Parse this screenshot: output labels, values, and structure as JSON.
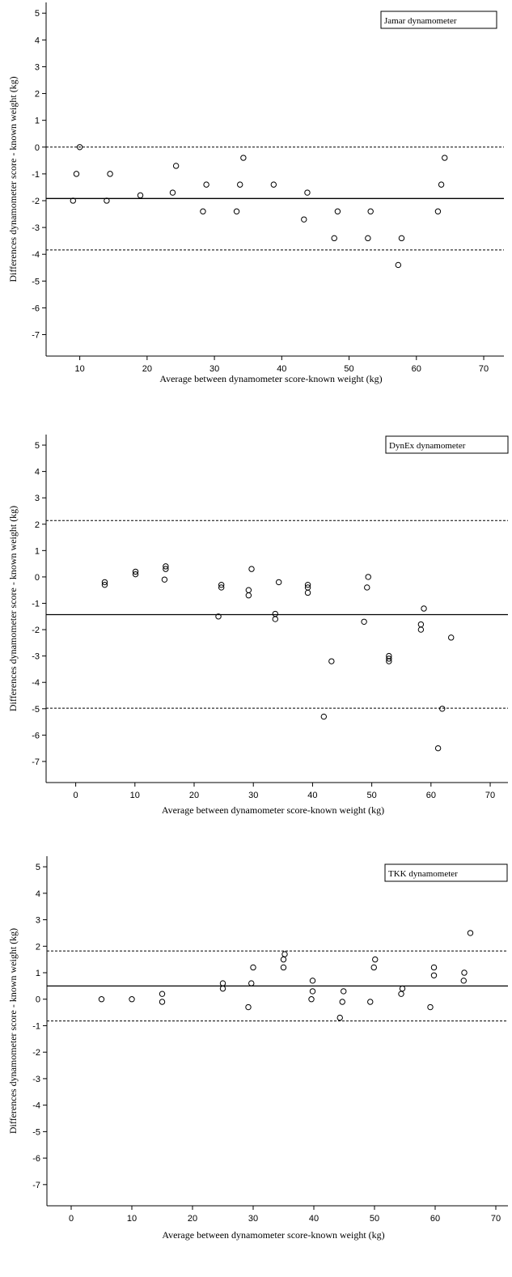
{
  "chart_data": [
    {
      "type": "scatter",
      "title": "Jamar dynamometer",
      "xlabel": "Average between dynamometer score-known weight (kg)",
      "ylabel": "Differences dynamometer score - known weight (kg)",
      "xlim": [
        5,
        73
      ],
      "ylim": [
        -7.8,
        5.4
      ],
      "x_ticks": [
        10,
        20,
        30,
        40,
        50,
        60,
        70
      ],
      "y_ticks": [
        5,
        4,
        3,
        2,
        1,
        0,
        -1,
        -2,
        -3,
        -4,
        -5,
        -6,
        -7
      ],
      "reference_lines": {
        "mean": -1.92,
        "upper_limit": 0.0,
        "lower_limit": -3.84
      },
      "points": [
        [
          9.0,
          -2.0
        ],
        [
          9.5,
          -1.0
        ],
        [
          10.0,
          0.0
        ],
        [
          14.0,
          -2.0
        ],
        [
          14.5,
          -1.0
        ],
        [
          19.0,
          -1.8
        ],
        [
          23.8,
          -1.7
        ],
        [
          24.3,
          -0.7
        ],
        [
          28.3,
          -2.4
        ],
        [
          28.8,
          -1.4
        ],
        [
          33.3,
          -2.4
        ],
        [
          33.8,
          -1.4
        ],
        [
          34.3,
          -0.4
        ],
        [
          38.8,
          -1.4
        ],
        [
          43.3,
          -2.7
        ],
        [
          43.8,
          -1.7
        ],
        [
          47.8,
          -3.4
        ],
        [
          48.3,
          -2.4
        ],
        [
          52.8,
          -3.4
        ],
        [
          53.2,
          -2.4
        ],
        [
          57.3,
          -4.4
        ],
        [
          57.8,
          -3.4
        ],
        [
          63.2,
          -2.4
        ],
        [
          63.7,
          -1.4
        ],
        [
          64.2,
          -0.4
        ]
      ]
    },
    {
      "type": "scatter",
      "title": "DynEx dynamometer",
      "xlabel": "Average between dynamometer score-known weight (kg)",
      "ylabel": "Differences dynamometer score - known weight (kg)",
      "xlim": [
        -5,
        73
      ],
      "ylim": [
        -7.8,
        5.4
      ],
      "x_ticks": [
        0,
        10,
        20,
        30,
        40,
        50,
        60,
        70
      ],
      "y_ticks": [
        5,
        4,
        3,
        2,
        1,
        0,
        -1,
        -2,
        -3,
        -4,
        -5,
        -6,
        -7
      ],
      "reference_lines": {
        "mean": -1.43,
        "upper_limit": 2.14,
        "lower_limit": -4.98
      },
      "points": [
        [
          4.9,
          -0.2
        ],
        [
          4.9,
          -0.3
        ],
        [
          10.1,
          0.1
        ],
        [
          10.1,
          0.2
        ],
        [
          15.0,
          -0.1
        ],
        [
          15.2,
          0.3
        ],
        [
          15.2,
          0.4
        ],
        [
          24.1,
          -1.5
        ],
        [
          24.6,
          -0.3
        ],
        [
          24.6,
          -0.4
        ],
        [
          29.2,
          -0.5
        ],
        [
          29.2,
          -0.7
        ],
        [
          29.7,
          0.3
        ],
        [
          33.7,
          -1.4
        ],
        [
          33.7,
          -1.6
        ],
        [
          34.3,
          -0.2
        ],
        [
          39.2,
          -0.3
        ],
        [
          39.2,
          -0.4
        ],
        [
          39.2,
          -0.6
        ],
        [
          41.9,
          -5.3
        ],
        [
          43.2,
          -3.2
        ],
        [
          48.7,
          -1.7
        ],
        [
          49.2,
          -0.4
        ],
        [
          49.4,
          0.0
        ],
        [
          52.9,
          -3.0
        ],
        [
          52.9,
          -3.1
        ],
        [
          52.9,
          -3.2
        ],
        [
          58.3,
          -1.8
        ],
        [
          58.3,
          -2.0
        ],
        [
          58.8,
          -1.2
        ],
        [
          61.2,
          -6.5
        ],
        [
          61.9,
          -5.0
        ],
        [
          63.4,
          -2.3
        ]
      ]
    },
    {
      "type": "scatter",
      "title": "TKK dynamometer",
      "xlabel": "Average between dynamometer score-known weight (kg)",
      "ylabel": "Differences dynamometer score - known weight (kg)",
      "xlim": [
        -4,
        72
      ],
      "ylim": [
        -7.8,
        5.4
      ],
      "x_ticks": [
        0,
        10,
        20,
        30,
        40,
        50,
        60,
        70
      ],
      "y_ticks": [
        5,
        4,
        3,
        2,
        1,
        0,
        -1,
        -2,
        -3,
        -4,
        -5,
        -6,
        -7
      ],
      "reference_lines": {
        "mean": 0.5,
        "upper_limit": 1.82,
        "lower_limit": -0.82
      },
      "points": [
        [
          5.0,
          0.0
        ],
        [
          10.0,
          0.0
        ],
        [
          15.0,
          -0.1
        ],
        [
          15.0,
          0.2
        ],
        [
          25.0,
          0.4
        ],
        [
          25.0,
          0.6
        ],
        [
          29.2,
          -0.3
        ],
        [
          29.7,
          0.6
        ],
        [
          30.0,
          1.2
        ],
        [
          35.0,
          1.2
        ],
        [
          35.0,
          1.5
        ],
        [
          35.2,
          1.7
        ],
        [
          39.6,
          0.0
        ],
        [
          39.8,
          0.3
        ],
        [
          39.8,
          0.7
        ],
        [
          44.3,
          -0.7
        ],
        [
          44.7,
          -0.1
        ],
        [
          44.9,
          0.3
        ],
        [
          49.3,
          -0.1
        ],
        [
          49.9,
          1.2
        ],
        [
          50.1,
          1.5
        ],
        [
          54.4,
          0.2
        ],
        [
          54.6,
          0.4
        ],
        [
          59.2,
          -0.3
        ],
        [
          59.8,
          0.9
        ],
        [
          59.8,
          1.2
        ],
        [
          64.7,
          0.7
        ],
        [
          64.8,
          1.0
        ],
        [
          65.8,
          2.5
        ]
      ]
    }
  ]
}
